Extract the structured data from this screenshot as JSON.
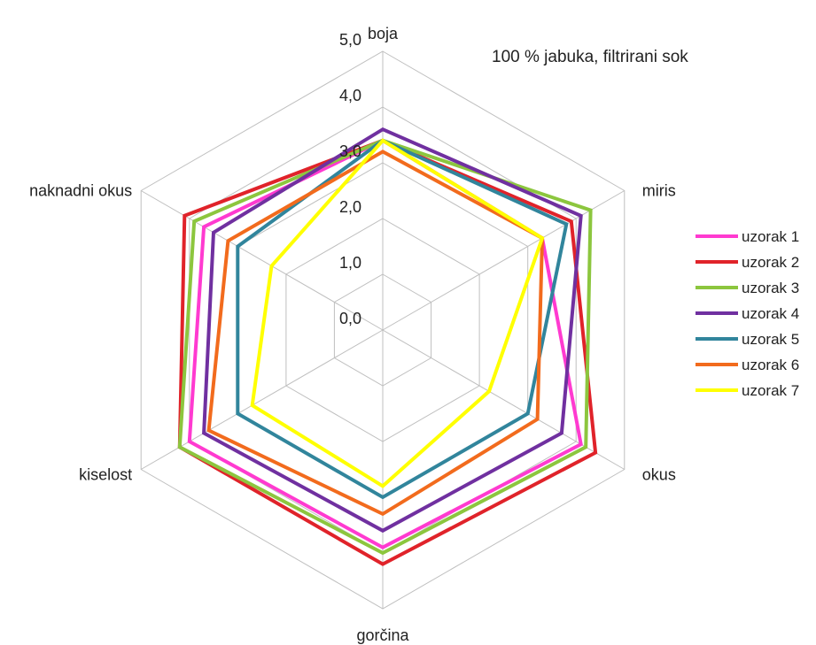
{
  "chart_data": {
    "type": "radar",
    "title": "100 % jabuka, filtrirani sok",
    "axes": [
      "boja",
      "miris",
      "okus",
      "gorčina",
      "kiselost",
      "naknadni okus"
    ],
    "tick_labels": [
      "0,0",
      "1,0",
      "2,0",
      "3,0",
      "4,0",
      "5,0"
    ],
    "range": [
      0,
      5
    ],
    "grid": true,
    "legend_position": "right",
    "series": [
      {
        "name": "uzorak 1",
        "color": "#ff3ad0",
        "values": [
          3.4,
          3.3,
          4.1,
          3.9,
          4.0,
          3.7
        ]
      },
      {
        "name": "uzorak 2",
        "color": "#e0232a",
        "values": [
          3.4,
          3.9,
          4.4,
          4.2,
          4.2,
          4.1
        ]
      },
      {
        "name": "uzorak 3",
        "color": "#8cc63e",
        "values": [
          3.4,
          4.3,
          4.2,
          4.0,
          4.2,
          3.9
        ]
      },
      {
        "name": "uzorak 4",
        "color": "#7030a0",
        "values": [
          3.6,
          4.1,
          3.7,
          3.6,
          3.7,
          3.5
        ]
      },
      {
        "name": "uzorak 5",
        "color": "#31859c",
        "values": [
          3.4,
          3.8,
          3.0,
          3.0,
          3.0,
          3.0
        ]
      },
      {
        "name": "uzorak 6",
        "color": "#f26b1d",
        "values": [
          3.2,
          3.3,
          3.2,
          3.3,
          3.6,
          3.2
        ]
      },
      {
        "name": "uzorak 7",
        "color": "#ffff00",
        "values": [
          3.4,
          3.3,
          2.2,
          2.8,
          2.7,
          2.3
        ]
      }
    ]
  }
}
